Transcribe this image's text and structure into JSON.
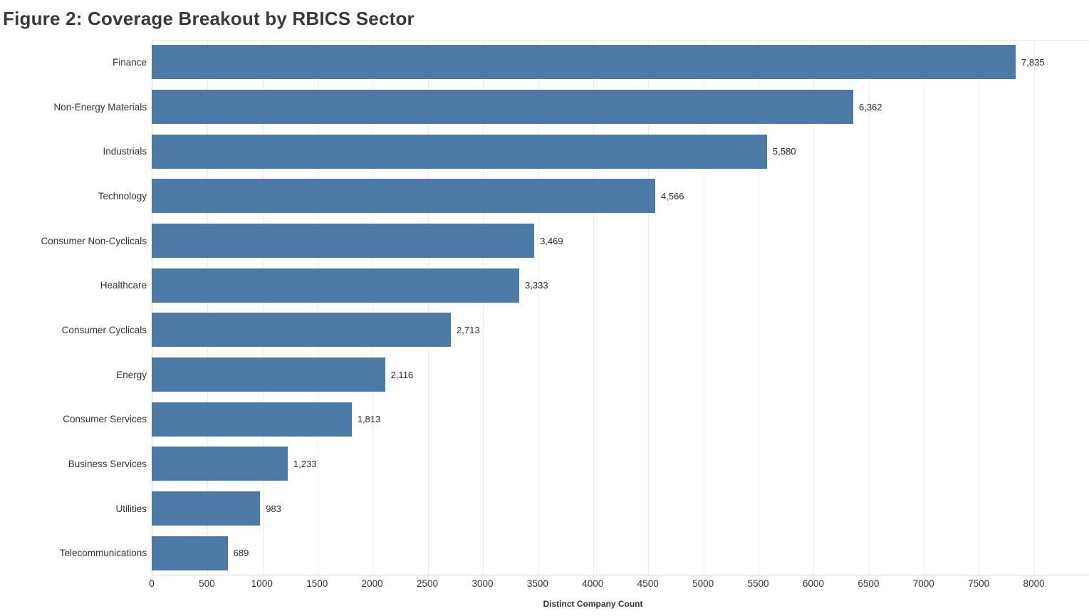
{
  "title": "Figure 2: Coverage Breakout by RBICS Sector",
  "chart_data": {
    "type": "bar",
    "orientation": "horizontal",
    "title": "Figure 2: Coverage Breakout by RBICS Sector",
    "xlabel": "Distinct Company Count",
    "ylabel": "",
    "categories": [
      "Finance",
      "Non-Energy Materials",
      "Industrials",
      "Technology",
      "Consumer Non-Cyclicals",
      "Healthcare",
      "Consumer Cyclicals",
      "Energy",
      "Consumer Services",
      "Business Services",
      "Utilities",
      "Telecommunications"
    ],
    "values": [
      7835,
      6362,
      5580,
      4566,
      3469,
      3333,
      2713,
      2116,
      1813,
      1233,
      983,
      689
    ],
    "value_labels": [
      "7,835",
      "6,362",
      "5,580",
      "4,566",
      "3,469",
      "3,333",
      "2,713",
      "2,116",
      "1,813",
      "1,233",
      "983",
      "689"
    ],
    "x_ticks": [
      0,
      500,
      1000,
      1500,
      2000,
      2500,
      3000,
      3500,
      4000,
      4500,
      5000,
      5500,
      6000,
      6500,
      7000,
      7500,
      8000
    ],
    "x_axis_max": 8500,
    "grid": true,
    "grid_step": 500,
    "legend_position": "none",
    "bar_color": "#4d79a7",
    "gridline_color": "#ebebeb",
    "axis_line_color": "#d6d6d6",
    "label_color": "#333333",
    "title_color": "#363b40",
    "background_color": "#ffffff"
  }
}
